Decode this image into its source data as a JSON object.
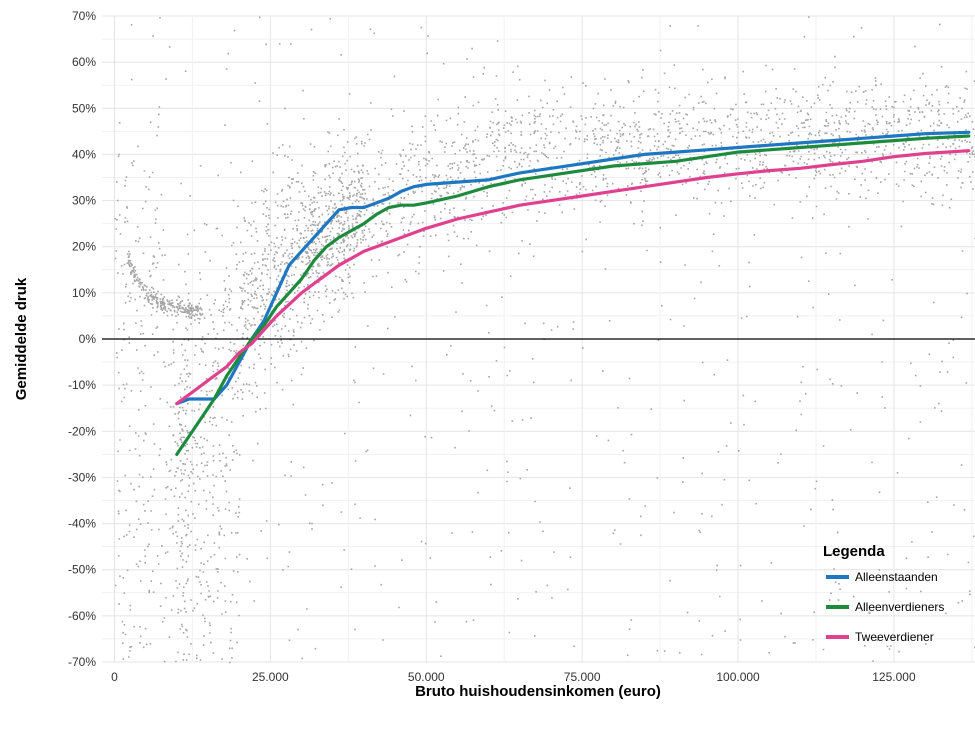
{
  "chart_data": {
    "type": "scatter",
    "xlabel": "Bruto huishoudensinkomen (euro)",
    "ylabel": "Gemiddelde druk",
    "xlim": [
      -2000,
      138000
    ],
    "ylim": [
      -70,
      70
    ],
    "x_ticks": [
      {
        "value": 0,
        "label": "0"
      },
      {
        "value": 25000,
        "label": "25.000"
      },
      {
        "value": 50000,
        "label": "50.000"
      },
      {
        "value": 75000,
        "label": "75.000"
      },
      {
        "value": 100000,
        "label": "100.000"
      },
      {
        "value": 125000,
        "label": "125.000"
      }
    ],
    "y_ticks": [
      {
        "value": 70,
        "label": "70%"
      },
      {
        "value": 60,
        "label": "60%"
      },
      {
        "value": 50,
        "label": "50%"
      },
      {
        "value": 40,
        "label": "40%"
      },
      {
        "value": 30,
        "label": "30%"
      },
      {
        "value": 20,
        "label": "20%"
      },
      {
        "value": 10,
        "label": "10%"
      },
      {
        "value": 0,
        "label": "0%"
      },
      {
        "value": -10,
        "label": "-10%"
      },
      {
        "value": -20,
        "label": "-20%"
      },
      {
        "value": -30,
        "label": "-30%"
      },
      {
        "value": -40,
        "label": "-40%"
      },
      {
        "value": -50,
        "label": "-50%"
      },
      {
        "value": -60,
        "label": "-60%"
      },
      {
        "value": -70,
        "label": "-70%"
      }
    ],
    "grid": true,
    "zero_line": true,
    "scatter_color": "#a6a6a6",
    "legend": {
      "title": "Legenda",
      "position": "bottom-right"
    },
    "series": [
      {
        "name": "Alleenstaanden",
        "color": "#1f77c2",
        "x": [
          10000,
          12000,
          14000,
          16000,
          18000,
          20000,
          22000,
          24000,
          26000,
          28000,
          30000,
          32000,
          34000,
          36000,
          38000,
          40000,
          42000,
          44000,
          46000,
          48000,
          50000,
          55000,
          60000,
          65000,
          70000,
          75000,
          80000,
          85000,
          90000,
          95000,
          100000,
          105000,
          110000,
          115000,
          120000,
          125000,
          130000,
          137000
        ],
        "y": [
          -14,
          -13,
          -13,
          -13,
          -10,
          -5,
          0,
          4,
          10,
          16,
          19,
          22,
          25,
          28,
          28.5,
          28.5,
          29.5,
          30.5,
          32,
          33,
          33.5,
          34,
          34.5,
          36,
          37,
          38,
          39,
          40,
          40.5,
          41,
          41.5,
          42,
          42.5,
          43,
          43.5,
          44,
          44.5,
          44.8
        ]
      },
      {
        "name": "Alleenverdieners",
        "color": "#1e8a3e",
        "x": [
          10000,
          12000,
          14000,
          16000,
          18000,
          20000,
          22000,
          24000,
          26000,
          28000,
          30000,
          32000,
          34000,
          36000,
          38000,
          40000,
          42000,
          44000,
          46000,
          48000,
          50000,
          55000,
          60000,
          65000,
          70000,
          75000,
          80000,
          85000,
          90000,
          95000,
          100000,
          105000,
          110000,
          115000,
          120000,
          125000,
          130000,
          137000
        ],
        "y": [
          -25,
          -21,
          -17,
          -13,
          -8,
          -4,
          0,
          3,
          7,
          10,
          13,
          17,
          20,
          22,
          23.5,
          25,
          27,
          28.5,
          29,
          29,
          29.5,
          31,
          33,
          34.5,
          35.5,
          36.5,
          37.5,
          38,
          38.5,
          39.5,
          40.5,
          41,
          41.5,
          42,
          42.5,
          43,
          43.5,
          44
        ]
      },
      {
        "name": "Tweeverdiener",
        "color": "#e0418f",
        "x": [
          10000,
          12000,
          14000,
          16000,
          18000,
          20000,
          22000,
          24000,
          26000,
          28000,
          30000,
          32000,
          34000,
          36000,
          38000,
          40000,
          42000,
          44000,
          46000,
          48000,
          50000,
          55000,
          60000,
          65000,
          70000,
          75000,
          80000,
          85000,
          90000,
          95000,
          100000,
          105000,
          110000,
          115000,
          120000,
          125000,
          130000,
          137000
        ],
        "y": [
          -14,
          -12,
          -10,
          -8,
          -6,
          -3,
          -1,
          2,
          5,
          7.5,
          10,
          12,
          14,
          16,
          17.5,
          19,
          20,
          21,
          22,
          23,
          24,
          26,
          27.5,
          29,
          30,
          31,
          32,
          33,
          34,
          35,
          35.8,
          36.5,
          37,
          37.8,
          38.5,
          39.5,
          40.2,
          40.8
        ]
      }
    ]
  }
}
